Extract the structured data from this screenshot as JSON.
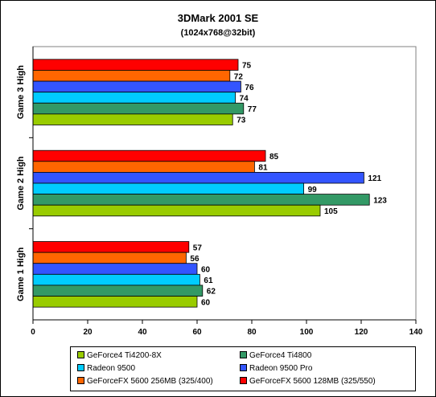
{
  "chart_data": {
    "type": "bar",
    "orientation": "horizontal",
    "title": "3DMark 2001 SE",
    "subtitle": "(1024x768@32bit)",
    "xlim": [
      0,
      140
    ],
    "xticks": [
      0,
      20,
      40,
      60,
      80,
      100,
      120,
      140
    ],
    "grid": false,
    "legend_position": "bottom",
    "categories": [
      "Game 3 High",
      "Game 2 High",
      "Game 1 High"
    ],
    "series": [
      {
        "name": "GeForceFX 5600 128MB (325/550)",
        "color": "#ff0000",
        "values": [
          75,
          85,
          57
        ]
      },
      {
        "name": "GeForceFX 5600 256MB (325/400)",
        "color": "#ff6600",
        "values": [
          72,
          81,
          56
        ]
      },
      {
        "name": "Radeon 9500 Pro",
        "color": "#3355ff",
        "values": [
          76,
          121,
          60
        ]
      },
      {
        "name": "Radeon 9500",
        "color": "#00ccff",
        "values": [
          74,
          99,
          61
        ]
      },
      {
        "name": "GeForce4 Ti4800",
        "color": "#339966",
        "values": [
          77,
          123,
          62
        ]
      },
      {
        "name": "GeForce4 Ti4200-8X",
        "color": "#99cc00",
        "values": [
          73,
          105,
          60
        ]
      }
    ],
    "legend": [
      {
        "name": "GeForce4 Ti4200-8X",
        "color": "#99cc00"
      },
      {
        "name": "GeForce4 Ti4800",
        "color": "#339966"
      },
      {
        "name": "Radeon 9500",
        "color": "#00ccff"
      },
      {
        "name": "Radeon 9500 Pro",
        "color": "#3355ff"
      },
      {
        "name": "GeForceFX 5600 256MB (325/400)",
        "color": "#ff6600"
      },
      {
        "name": "GeForceFX 5600 128MB (325/550)",
        "color": "#ff0000"
      }
    ]
  }
}
